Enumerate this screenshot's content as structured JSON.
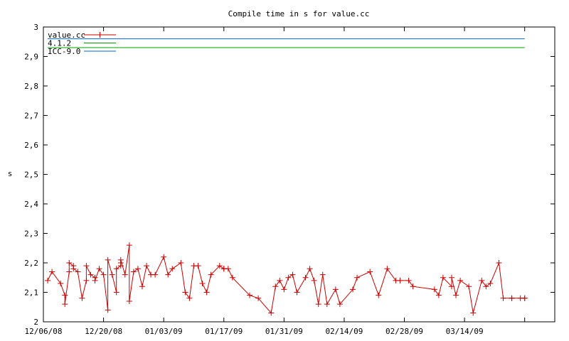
{
  "chart_data": {
    "type": "line",
    "title": "Compile time in s for value.cc",
    "xlabel": "",
    "ylabel": "s",
    "ylim": [
      2,
      3
    ],
    "y_ticks": [
      "2",
      "2,1",
      "2,2",
      "2,3",
      "2,4",
      "2,5",
      "2,6",
      "2,7",
      "2,8",
      "2,9",
      "3"
    ],
    "xlim": [
      "2008-12-06",
      "2009-04-04"
    ],
    "x_ticks": [
      "12/06/08",
      "12/20/08",
      "01/03/09",
      "01/17/09",
      "01/31/09",
      "02/14/09",
      "02/28/09",
      "03/14/09"
    ],
    "legend_position": "top-left",
    "grid": false,
    "series": [
      {
        "name": "value.cc",
        "color": "#cc0000",
        "marker": "plus",
        "x": [
          "2008-12-07",
          "2008-12-08",
          "2008-12-10",
          "2008-12-11",
          "2008-12-11",
          "2008-12-12",
          "2008-12-12",
          "2008-12-13",
          "2008-12-13",
          "2008-12-14",
          "2008-12-15",
          "2008-12-16",
          "2008-12-16",
          "2008-12-17",
          "2008-12-18",
          "2008-12-18",
          "2008-12-19",
          "2008-12-20",
          "2008-12-21",
          "2008-12-21",
          "2008-12-22",
          "2008-12-23",
          "2008-12-23",
          "2008-12-24",
          "2008-12-24",
          "2008-12-24",
          "2008-12-25",
          "2008-12-26",
          "2008-12-26",
          "2008-12-27",
          "2008-12-28",
          "2008-12-29",
          "2008-12-30",
          "2008-12-31",
          "2009-01-01",
          "2009-01-03",
          "2009-01-04",
          "2009-01-05",
          "2009-01-07",
          "2009-01-08",
          "2009-01-09",
          "2009-01-10",
          "2009-01-11",
          "2009-01-12",
          "2009-01-13",
          "2009-01-14",
          "2009-01-16",
          "2009-01-17",
          "2009-01-17",
          "2009-01-18",
          "2009-01-19",
          "2009-01-23",
          "2009-01-25",
          "2009-01-28",
          "2009-01-29",
          "2009-01-30",
          "2009-01-31",
          "2009-02-01",
          "2009-02-02",
          "2009-02-03",
          "2009-02-05",
          "2009-02-06",
          "2009-02-07",
          "2009-02-08",
          "2009-02-09",
          "2009-02-10",
          "2009-02-12",
          "2009-02-13",
          "2009-02-16",
          "2009-02-17",
          "2009-02-20",
          "2009-02-22",
          "2009-02-24",
          "2009-02-26",
          "2009-02-27",
          "2009-03-01",
          "2009-03-02",
          "2009-03-07",
          "2009-03-08",
          "2009-03-09",
          "2009-03-11",
          "2009-03-11",
          "2009-03-12",
          "2009-03-13",
          "2009-03-15",
          "2009-03-16",
          "2009-03-18",
          "2009-03-19",
          "2009-03-20",
          "2009-03-22",
          "2009-03-23",
          "2009-03-25",
          "2009-03-25",
          "2009-03-27",
          "2009-03-28",
          "2009-03-28"
        ],
        "y": [
          2.14,
          2.17,
          2.13,
          2.09,
          2.06,
          2.17,
          2.2,
          2.19,
          2.18,
          2.17,
          2.08,
          2.14,
          2.19,
          2.16,
          2.15,
          2.14,
          2.18,
          2.16,
          2.04,
          2.21,
          2.16,
          2.1,
          2.18,
          2.19,
          2.2,
          2.21,
          2.16,
          2.26,
          2.07,
          2.17,
          2.18,
          2.12,
          2.19,
          2.16,
          2.16,
          2.22,
          2.16,
          2.18,
          2.2,
          2.1,
          2.08,
          2.19,
          2.19,
          2.13,
          2.1,
          2.16,
          2.19,
          2.18,
          2.18,
          2.18,
          2.15,
          2.09,
          2.08,
          2.03,
          2.12,
          2.14,
          2.11,
          2.15,
          2.16,
          2.1,
          2.15,
          2.18,
          2.14,
          2.06,
          2.16,
          2.06,
          2.11,
          2.06,
          2.11,
          2.15,
          2.17,
          2.09,
          2.18,
          2.14,
          2.14,
          2.14,
          2.12,
          2.11,
          2.09,
          2.15,
          2.12,
          2.15,
          2.09,
          2.14,
          2.12,
          2.03,
          2.14,
          2.12,
          2.13,
          2.2,
          2.08,
          2.08,
          2.08,
          2.08,
          2.08,
          2.08
        ]
      },
      {
        "name": "4.1.2",
        "color": "#00a000",
        "marker": "none",
        "x": [
          "2008-12-07",
          "2009-03-28"
        ],
        "y": [
          2.93,
          2.93
        ]
      },
      {
        "name": "ICC-9.0",
        "color": "#0066cc",
        "marker": "none",
        "x": [
          "2008-12-07",
          "2009-03-28"
        ],
        "y": [
          2.96,
          2.96
        ]
      }
    ]
  }
}
